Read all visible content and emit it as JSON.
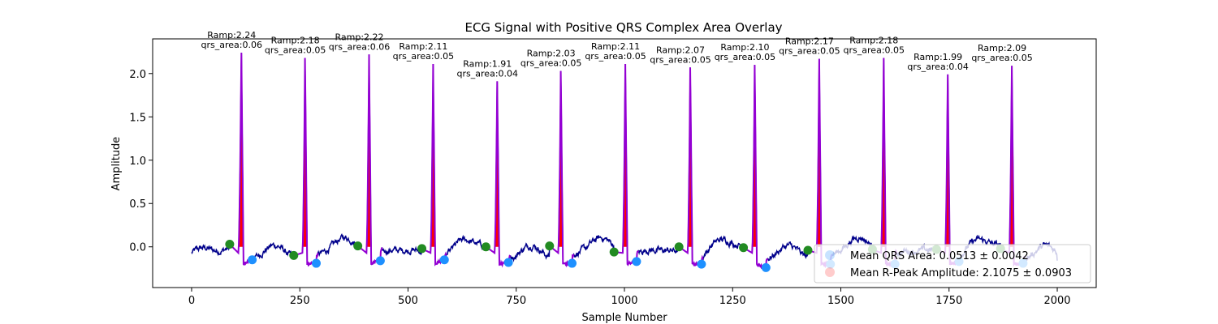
{
  "chart_data": {
    "type": "line",
    "title": "ECG Signal with Positive QRS Complex Area Overlay",
    "xlabel": "Sample Number",
    "ylabel": "Amplitude",
    "xlim": [
      -90,
      2090
    ],
    "ylim": [
      -0.47,
      2.4
    ],
    "xticks": [
      0,
      250,
      500,
      750,
      1000,
      1250,
      1500,
      1750,
      2000
    ],
    "yticks": [
      0.0,
      0.5,
      1.0,
      1.5,
      2.0
    ],
    "xtick_labels": [
      "0",
      "250",
      "500",
      "750",
      "1000",
      "1250",
      "1500",
      "1750",
      "2000"
    ],
    "ytick_labels": [
      "0.0",
      "0.5",
      "1.0",
      "1.5",
      "2.0"
    ],
    "grid": false,
    "colors": {
      "signal": "#00008b",
      "qrs": "#9400d3",
      "fill": "#ff0000",
      "q_marker": "#228b22",
      "s_marker": "#1e90ff"
    },
    "beats": [
      {
        "r_x": 115,
        "r_amp": 2.24,
        "ramp_label": "Ramp:2.24",
        "area_label": "qrs_area:0.06",
        "q_x": 88,
        "q_y": 0.03,
        "s_x": 140,
        "s_y": -0.15
      },
      {
        "r_x": 262,
        "r_amp": 2.18,
        "ramp_label": "Ramp:2.18",
        "area_label": "qrs_area:0.05",
        "q_x": 236,
        "q_y": -0.1,
        "s_x": 288,
        "s_y": -0.19
      },
      {
        "r_x": 410,
        "r_amp": 2.22,
        "ramp_label": "Ramp:2.22",
        "area_label": "qrs_area:0.06",
        "q_x": 384,
        "q_y": 0.01,
        "s_x": 436,
        "s_y": -0.16
      },
      {
        "r_x": 558,
        "r_amp": 2.11,
        "ramp_label": "Ramp:2.11",
        "area_label": "qrs_area:0.05",
        "q_x": 532,
        "q_y": -0.02,
        "s_x": 584,
        "s_y": -0.15
      },
      {
        "r_x": 706,
        "r_amp": 1.91,
        "ramp_label": "Ramp:1.91",
        "area_label": "qrs_area:0.04",
        "q_x": 680,
        "q_y": 0.0,
        "s_x": 732,
        "s_y": -0.18
      },
      {
        "r_x": 853,
        "r_amp": 2.03,
        "ramp_label": "Ramp:2.03",
        "area_label": "qrs_area:0.05",
        "q_x": 827,
        "q_y": 0.01,
        "s_x": 879,
        "s_y": -0.19
      },
      {
        "r_x": 1002,
        "r_amp": 2.11,
        "ramp_label": "Ramp:2.11",
        "area_label": "qrs_area:0.05",
        "q_x": 976,
        "q_y": -0.06,
        "s_x": 1028,
        "s_y": -0.17
      },
      {
        "r_x": 1152,
        "r_amp": 2.07,
        "ramp_label": "Ramp:2.07",
        "area_label": "qrs_area:0.05",
        "q_x": 1126,
        "q_y": 0.0,
        "s_x": 1178,
        "s_y": -0.2
      },
      {
        "r_x": 1301,
        "r_amp": 2.1,
        "ramp_label": "Ramp:2.10",
        "area_label": "qrs_area:0.05",
        "q_x": 1275,
        "q_y": -0.01,
        "s_x": 1327,
        "s_y": -0.24
      },
      {
        "r_x": 1450,
        "r_amp": 2.17,
        "ramp_label": "Ramp:2.17",
        "area_label": "qrs_area:0.05",
        "q_x": 1424,
        "q_y": -0.04,
        "s_x": 1476,
        "s_y": -0.2
      },
      {
        "r_x": 1599,
        "r_amp": 2.18,
        "ramp_label": "Ramp:2.18",
        "area_label": "qrs_area:0.05",
        "q_x": 1573,
        "q_y": -0.03,
        "s_x": 1625,
        "s_y": -0.2
      },
      {
        "r_x": 1747,
        "r_amp": 1.99,
        "ramp_label": "Ramp:1.99",
        "area_label": "qrs_area:0.04",
        "q_x": 1721,
        "q_y": -0.03,
        "s_x": 1773,
        "s_y": -0.17
      },
      {
        "r_x": 1895,
        "r_amp": 2.09,
        "ramp_label": "Ramp:2.09",
        "area_label": "qrs_area:0.05",
        "q_x": 1869,
        "q_y": -0.02,
        "s_x": 1921,
        "s_y": -0.19
      }
    ],
    "legend": {
      "placement": "lower-right",
      "entries": [
        {
          "text": "Mean QRS Area: 0.0513 ± 0.0042"
        },
        {
          "text": "Mean R-Peak Amplitude: 2.1075 ± 0.0903"
        }
      ]
    }
  }
}
